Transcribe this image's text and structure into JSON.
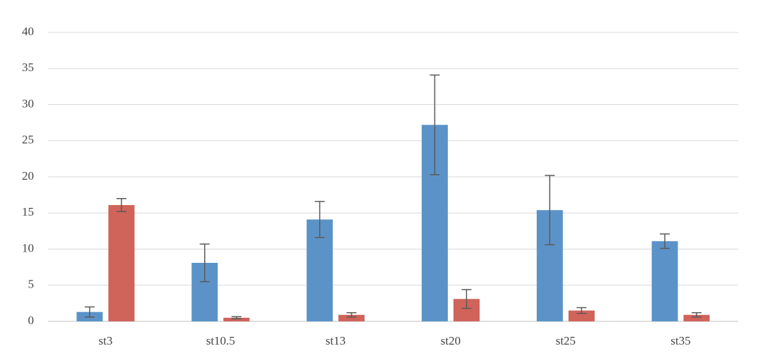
{
  "chart_data": {
    "type": "bar",
    "categories": [
      "st3",
      "st10.5",
      "st13",
      "st20",
      "st25",
      "st35"
    ],
    "series": [
      {
        "color": "#5b93c8",
        "values": [
          1.3,
          8.1,
          14.1,
          27.2,
          15.4,
          11.1
        ],
        "errors": [
          0.7,
          2.6,
          2.5,
          6.9,
          4.8,
          1.0
        ]
      },
      {
        "color": "#d0635a",
        "values": [
          16.1,
          0.5,
          0.9,
          3.1,
          1.5,
          0.9
        ],
        "errors": [
          0.9,
          0.15,
          0.3,
          1.3,
          0.4,
          0.3
        ]
      }
    ],
    "ylim": [
      0,
      40
    ],
    "yticks": [
      0,
      5,
      10,
      15,
      20,
      25,
      30,
      35,
      40
    ],
    "grid": true
  }
}
